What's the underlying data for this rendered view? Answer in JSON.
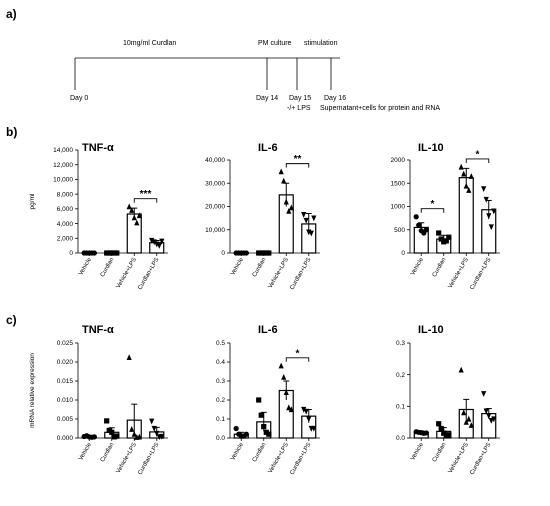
{
  "panels": {
    "a": "a)",
    "b": "b)",
    "c": "c)"
  },
  "timeline": {
    "curdlan_label": "10mg/ml Curdlan",
    "pm_label": "PM culture",
    "stim_label": "stimulation",
    "day0": "Day 0",
    "day14": "Day 14",
    "day15": "Day 15",
    "lps": "-/+ LPS",
    "day16": "Day 16",
    "supernatant": "Supernatant+cells for protein and RNA"
  },
  "colors": {
    "marker": "#000000",
    "bar_fill": "#ffffff",
    "bar_stroke": "#000000"
  },
  "chart_data": [
    {
      "type": "bar",
      "title": "TNF-α",
      "ylabel": "pg/ml",
      "categories": [
        "Vehicle",
        "Curdlan",
        "Vehicle+LPS",
        "Curdlan+LPS"
      ],
      "values": [
        30,
        30,
        5300,
        1400
      ],
      "errors": [
        20,
        20,
        800,
        300
      ],
      "markers": [
        "circle",
        "square",
        "triangle",
        "triangle-down"
      ],
      "points": [
        [
          0,
          0,
          0,
          0,
          0
        ],
        [
          0,
          0,
          0,
          0,
          0
        ],
        [
          6300,
          5800,
          4800,
          4100,
          5100
        ],
        [
          1700,
          1500,
          1200,
          1000,
          1600
        ]
      ],
      "ylim": [
        0,
        14000
      ],
      "yticks": [
        0,
        2000,
        4000,
        6000,
        8000,
        10000,
        12000,
        14000
      ],
      "ytick_labels": [
        "0",
        "2,000",
        "4,000",
        "6,000",
        "8,000",
        "10,000",
        "12,000",
        "14,000"
      ],
      "significance": [
        {
          "from": 2,
          "to": 3,
          "label": "***"
        }
      ]
    },
    {
      "type": "bar",
      "title": "IL-6",
      "categories": [
        "Vehicle",
        "Curdlan",
        "Vehicle+LPS",
        "Curdlan+LPS"
      ],
      "values": [
        200,
        200,
        25000,
        12500
      ],
      "errors": [
        100,
        100,
        5000,
        4500
      ],
      "markers": [
        "circle",
        "square",
        "triangle",
        "triangle-down"
      ],
      "points": [
        [
          0,
          0,
          0,
          0,
          0
        ],
        [
          0,
          0,
          0,
          0,
          0
        ],
        [
          35000,
          31000,
          22000,
          18000,
          19500
        ],
        [
          16500,
          14000,
          9000,
          8500,
          15000
        ]
      ],
      "ylim": [
        0,
        40000
      ],
      "yticks": [
        0,
        10000,
        20000,
        30000,
        40000
      ],
      "ytick_labels": [
        "0",
        "10,000",
        "20,000",
        "30,000",
        "40,000"
      ],
      "significance": [
        {
          "from": 2,
          "to": 3,
          "label": "**"
        }
      ]
    },
    {
      "type": "bar",
      "title": "IL-10",
      "categories": [
        "Vehicle",
        "Curdlan",
        "Vehicle+LPS",
        "Curdlan+LPS"
      ],
      "values": [
        550,
        300,
        1620,
        930
      ],
      "errors": [
        100,
        80,
        200,
        200
      ],
      "markers": [
        "circle",
        "square",
        "triangle",
        "triangle-down"
      ],
      "points": [
        [
          780,
          600,
          480,
          430,
          500
        ],
        [
          430,
          300,
          240,
          260,
          340
        ],
        [
          1850,
          1700,
          1440,
          1350,
          1650
        ],
        [
          1380,
          1150,
          800,
          560,
          900
        ]
      ],
      "ylim": [
        0,
        2000
      ],
      "yticks": [
        0,
        500,
        1000,
        1500,
        2000
      ],
      "ytick_labels": [
        "0",
        "500",
        "1000",
        "1500",
        "2000"
      ],
      "significance": [
        {
          "from": 0,
          "to": 1,
          "label": "*"
        },
        {
          "from": 2,
          "to": 3,
          "label": "*"
        }
      ]
    },
    {
      "type": "bar",
      "title": "TNF-α",
      "ylabel": "mRNA relative expression",
      "categories": [
        "Vehicle",
        "Curdlan",
        "Vehicle+LPS",
        "Curdlan+LPS"
      ],
      "values": [
        0.0004,
        0.0015,
        0.0047,
        0.0016
      ],
      "errors": [
        0.0002,
        0.0012,
        0.0042,
        0.0012
      ],
      "markers": [
        "circle",
        "square",
        "triangle",
        "triangle-down"
      ],
      "points": [
        [
          0.0004,
          0.0006,
          0.0003,
          0.0002,
          0.0003
        ],
        [
          0.0045,
          0.002,
          0.0015,
          0.0003,
          0.0005
        ],
        [
          0.0212,
          0.0023,
          0.001,
          0.0002,
          0.0003
        ],
        [
          0.0044,
          0.0025,
          0.0012,
          0.0003,
          0.0004
        ]
      ],
      "ylim": [
        0,
        0.025
      ],
      "yticks": [
        0,
        0.005,
        0.01,
        0.015,
        0.02,
        0.025
      ],
      "ytick_labels": [
        "0.000",
        "0.005",
        "0.010",
        "0.015",
        "0.020",
        "0.025"
      ],
      "significance": []
    },
    {
      "type": "bar",
      "title": "IL-6",
      "categories": [
        "Vehicle",
        "Curdlan",
        "Vehicle+LPS",
        "Curdlan+LPS"
      ],
      "values": [
        0.02,
        0.085,
        0.25,
        0.115
      ],
      "errors": [
        0.01,
        0.05,
        0.05,
        0.035
      ],
      "markers": [
        "circle",
        "square",
        "triangle",
        "triangle-down"
      ],
      "points": [
        [
          0.05,
          0.02,
          0.01,
          0.01,
          0.02
        ],
        [
          0.2,
          0.12,
          0.06,
          0.03,
          0.02
        ],
        [
          0.38,
          0.32,
          0.24,
          0.16,
          0.15
        ],
        [
          0.15,
          0.14,
          0.1,
          0.05,
          0.05
        ]
      ],
      "ylim": [
        0,
        0.5
      ],
      "yticks": [
        0,
        0.1,
        0.2,
        0.3,
        0.4,
        0.5
      ],
      "ytick_labels": [
        "0.0",
        "0.1",
        "0.2",
        "0.3",
        "0.4",
        "0.5"
      ],
      "significance": [
        {
          "from": 2,
          "to": 3,
          "label": "*"
        }
      ]
    },
    {
      "type": "bar",
      "title": "IL-10",
      "categories": [
        "Vehicle",
        "Curdlan",
        "Vehicle+LPS",
        "Curdlan+LPS"
      ],
      "values": [
        0.018,
        0.021,
        0.09,
        0.077
      ],
      "errors": [
        0.004,
        0.012,
        0.032,
        0.016
      ],
      "markers": [
        "circle",
        "square",
        "triangle",
        "triangle-down"
      ],
      "points": [
        [
          0.02,
          0.018,
          0.017,
          0.015,
          0.016
        ],
        [
          0.045,
          0.03,
          0.015,
          0.01,
          0.01
        ],
        [
          0.215,
          0.08,
          0.05,
          0.06,
          0.04
        ],
        [
          0.14,
          0.085,
          0.07,
          0.055,
          0.06
        ]
      ],
      "ylim": [
        0,
        0.3
      ],
      "yticks": [
        0,
        0.1,
        0.2,
        0.3
      ],
      "ytick_labels": [
        "0.0",
        "0.1",
        "0.2",
        "0.3"
      ],
      "significance": []
    }
  ]
}
